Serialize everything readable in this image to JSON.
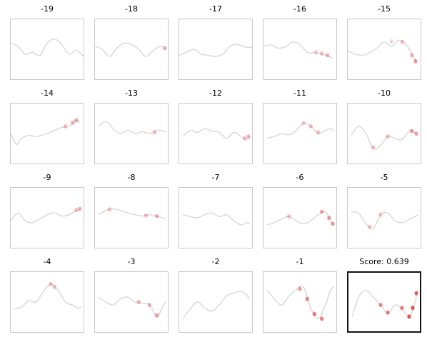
{
  "chart_data": {
    "type": "line",
    "layout": "grid-4x5",
    "panels": [
      {
        "title": "-19",
        "highlight": false,
        "curve": [
          [
            0.0,
            0.4
          ],
          [
            0.1,
            0.45
          ],
          [
            0.2,
            0.58
          ],
          [
            0.3,
            0.55
          ],
          [
            0.4,
            0.6
          ],
          [
            0.5,
            0.4
          ],
          [
            0.6,
            0.33
          ],
          [
            0.7,
            0.42
          ],
          [
            0.8,
            0.58
          ],
          [
            0.9,
            0.52
          ],
          [
            1.0,
            0.62
          ]
        ],
        "marks": []
      },
      {
        "title": "-18",
        "highlight": false,
        "curve": [
          [
            0.0,
            0.45
          ],
          [
            0.1,
            0.5
          ],
          [
            0.2,
            0.62
          ],
          [
            0.3,
            0.48
          ],
          [
            0.4,
            0.4
          ],
          [
            0.5,
            0.42
          ],
          [
            0.6,
            0.5
          ],
          [
            0.7,
            0.62
          ],
          [
            0.8,
            0.52
          ],
          [
            0.9,
            0.45
          ],
          [
            0.97,
            0.5
          ]
        ],
        "marks": [
          [
            0.96,
            0.48,
            0.35
          ]
        ]
      },
      {
        "title": "-17",
        "highlight": false,
        "curve": [
          [
            0.0,
            0.6
          ],
          [
            0.1,
            0.55
          ],
          [
            0.2,
            0.5
          ],
          [
            0.3,
            0.58
          ],
          [
            0.4,
            0.6
          ],
          [
            0.5,
            0.62
          ],
          [
            0.6,
            0.58
          ],
          [
            0.7,
            0.45
          ],
          [
            0.8,
            0.42
          ],
          [
            0.9,
            0.46
          ],
          [
            1.0,
            0.47
          ]
        ],
        "marks": []
      },
      {
        "title": "-16",
        "highlight": false,
        "curve": [
          [
            0.0,
            0.45
          ],
          [
            0.1,
            0.43
          ],
          [
            0.2,
            0.48
          ],
          [
            0.3,
            0.46
          ],
          [
            0.4,
            0.38
          ],
          [
            0.5,
            0.42
          ],
          [
            0.6,
            0.55
          ],
          [
            0.7,
            0.56
          ],
          [
            0.8,
            0.58
          ],
          [
            0.9,
            0.62
          ],
          [
            0.95,
            0.65
          ]
        ],
        "marks": [
          [
            0.72,
            0.55,
            0.25
          ],
          [
            0.8,
            0.57,
            0.3
          ],
          [
            0.88,
            0.6,
            0.35
          ]
        ]
      },
      {
        "title": "-15",
        "highlight": false,
        "curve": [
          [
            0.0,
            0.53
          ],
          [
            0.1,
            0.58
          ],
          [
            0.2,
            0.6
          ],
          [
            0.3,
            0.56
          ],
          [
            0.4,
            0.48
          ],
          [
            0.5,
            0.38
          ],
          [
            0.6,
            0.45
          ],
          [
            0.7,
            0.35
          ],
          [
            0.8,
            0.42
          ],
          [
            0.9,
            0.62
          ],
          [
            0.95,
            0.72
          ]
        ],
        "marks": [
          [
            0.6,
            0.37,
            0.2
          ],
          [
            0.75,
            0.38,
            0.3
          ],
          [
            0.88,
            0.6,
            0.35
          ],
          [
            0.93,
            0.7,
            0.45
          ]
        ]
      },
      {
        "title": "-14",
        "highlight": false,
        "curve": [
          [
            0.0,
            0.5
          ],
          [
            0.08,
            0.68
          ],
          [
            0.15,
            0.58
          ],
          [
            0.25,
            0.53
          ],
          [
            0.35,
            0.55
          ],
          [
            0.5,
            0.5
          ],
          [
            0.6,
            0.45
          ],
          [
            0.7,
            0.4
          ],
          [
            0.8,
            0.38
          ],
          [
            0.9,
            0.28
          ],
          [
            0.95,
            0.32
          ]
        ],
        "marks": [
          [
            0.75,
            0.38,
            0.3
          ],
          [
            0.85,
            0.32,
            0.35
          ],
          [
            0.9,
            0.28,
            0.4
          ]
        ]
      },
      {
        "title": "-13",
        "highlight": false,
        "curve": [
          [
            0.05,
            0.38
          ],
          [
            0.15,
            0.3
          ],
          [
            0.25,
            0.42
          ],
          [
            0.35,
            0.5
          ],
          [
            0.45,
            0.45
          ],
          [
            0.55,
            0.5
          ],
          [
            0.65,
            0.47
          ],
          [
            0.75,
            0.5
          ],
          [
            0.85,
            0.45
          ],
          [
            0.92,
            0.45
          ],
          [
            0.97,
            0.47
          ]
        ],
        "marks": [
          [
            0.82,
            0.48,
            0.3
          ]
        ]
      },
      {
        "title": "-12",
        "highlight": false,
        "curve": [
          [
            0.05,
            0.55
          ],
          [
            0.15,
            0.45
          ],
          [
            0.25,
            0.48
          ],
          [
            0.35,
            0.42
          ],
          [
            0.45,
            0.46
          ],
          [
            0.55,
            0.48
          ],
          [
            0.65,
            0.58
          ],
          [
            0.75,
            0.48
          ],
          [
            0.85,
            0.55
          ],
          [
            0.92,
            0.6
          ],
          [
            0.97,
            0.55
          ]
        ],
        "marks": [
          [
            0.9,
            0.58,
            0.3
          ],
          [
            0.95,
            0.55,
            0.35
          ]
        ]
      },
      {
        "title": "-11",
        "highlight": false,
        "curve": [
          [
            0.05,
            0.58
          ],
          [
            0.15,
            0.55
          ],
          [
            0.25,
            0.5
          ],
          [
            0.35,
            0.52
          ],
          [
            0.45,
            0.45
          ],
          [
            0.55,
            0.32
          ],
          [
            0.65,
            0.38
          ],
          [
            0.75,
            0.5
          ],
          [
            0.85,
            0.45
          ],
          [
            0.92,
            0.42
          ],
          [
            0.97,
            0.45
          ]
        ],
        "marks": [
          [
            0.55,
            0.33,
            0.25
          ],
          [
            0.65,
            0.38,
            0.3
          ],
          [
            0.75,
            0.48,
            0.3
          ]
        ]
      },
      {
        "title": "-10",
        "highlight": false,
        "curve": [
          [
            0.05,
            0.52
          ],
          [
            0.15,
            0.38
          ],
          [
            0.25,
            0.5
          ],
          [
            0.35,
            0.75
          ],
          [
            0.45,
            0.7
          ],
          [
            0.55,
            0.55
          ],
          [
            0.65,
            0.58
          ],
          [
            0.75,
            0.6
          ],
          [
            0.85,
            0.45
          ],
          [
            0.92,
            0.48
          ],
          [
            0.97,
            0.55
          ]
        ],
        "marks": [
          [
            0.35,
            0.73,
            0.3
          ],
          [
            0.55,
            0.55,
            0.3
          ],
          [
            0.88,
            0.46,
            0.45
          ],
          [
            0.94,
            0.5,
            0.4
          ]
        ]
      },
      {
        "title": "-9",
        "highlight": false,
        "curve": [
          [
            0.0,
            0.55
          ],
          [
            0.1,
            0.42
          ],
          [
            0.2,
            0.55
          ],
          [
            0.3,
            0.58
          ],
          [
            0.4,
            0.52
          ],
          [
            0.5,
            0.45
          ],
          [
            0.6,
            0.42
          ],
          [
            0.7,
            0.47
          ],
          [
            0.8,
            0.45
          ],
          [
            0.9,
            0.38
          ],
          [
            0.97,
            0.35
          ]
        ],
        "marks": [
          [
            0.9,
            0.37,
            0.3
          ],
          [
            0.95,
            0.35,
            0.35
          ]
        ]
      },
      {
        "title": "-8",
        "highlight": false,
        "curve": [
          [
            0.05,
            0.45
          ],
          [
            0.15,
            0.38
          ],
          [
            0.25,
            0.35
          ],
          [
            0.35,
            0.38
          ],
          [
            0.45,
            0.42
          ],
          [
            0.55,
            0.45
          ],
          [
            0.65,
            0.47
          ],
          [
            0.75,
            0.45
          ],
          [
            0.85,
            0.48
          ],
          [
            0.92,
            0.5
          ],
          [
            0.97,
            0.52
          ]
        ],
        "marks": [
          [
            0.2,
            0.36,
            0.3
          ],
          [
            0.7,
            0.46,
            0.3
          ],
          [
            0.85,
            0.47,
            0.35
          ]
        ]
      },
      {
        "title": "-7",
        "highlight": false,
        "curve": [
          [
            0.05,
            0.45
          ],
          [
            0.15,
            0.48
          ],
          [
            0.25,
            0.5
          ],
          [
            0.35,
            0.45
          ],
          [
            0.45,
            0.42
          ],
          [
            0.55,
            0.48
          ],
          [
            0.65,
            0.45
          ],
          [
            0.75,
            0.55
          ],
          [
            0.85,
            0.62
          ],
          [
            0.92,
            0.58
          ],
          [
            0.97,
            0.6
          ]
        ],
        "marks": []
      },
      {
        "title": "-6",
        "highlight": false,
        "curve": [
          [
            0.05,
            0.62
          ],
          [
            0.15,
            0.58
          ],
          [
            0.25,
            0.52
          ],
          [
            0.35,
            0.48
          ],
          [
            0.45,
            0.55
          ],
          [
            0.55,
            0.6
          ],
          [
            0.65,
            0.55
          ],
          [
            0.75,
            0.45
          ],
          [
            0.85,
            0.4
          ],
          [
            0.92,
            0.55
          ],
          [
            0.97,
            0.62
          ]
        ],
        "marks": [
          [
            0.35,
            0.48,
            0.3
          ],
          [
            0.8,
            0.4,
            0.4
          ],
          [
            0.9,
            0.5,
            0.45
          ],
          [
            0.95,
            0.6,
            0.45
          ]
        ]
      },
      {
        "title": "-5",
        "highlight": false,
        "curve": [
          [
            0.05,
            0.4
          ],
          [
            0.15,
            0.42
          ],
          [
            0.25,
            0.6
          ],
          [
            0.35,
            0.68
          ],
          [
            0.45,
            0.45
          ],
          [
            0.55,
            0.42
          ],
          [
            0.65,
            0.55
          ],
          [
            0.75,
            0.58
          ],
          [
            0.85,
            0.52
          ],
          [
            0.92,
            0.48
          ],
          [
            0.97,
            0.45
          ]
        ],
        "marks": [
          [
            0.3,
            0.65,
            0.3
          ],
          [
            0.45,
            0.45,
            0.3
          ]
        ]
      },
      {
        "title": "-4",
        "highlight": false,
        "curve": [
          [
            0.05,
            0.62
          ],
          [
            0.15,
            0.58
          ],
          [
            0.25,
            0.48
          ],
          [
            0.35,
            0.5
          ],
          [
            0.45,
            0.32
          ],
          [
            0.55,
            0.2
          ],
          [
            0.65,
            0.3
          ],
          [
            0.75,
            0.5
          ],
          [
            0.85,
            0.55
          ],
          [
            0.92,
            0.6
          ],
          [
            0.97,
            0.58
          ]
        ],
        "marks": [
          [
            0.55,
            0.2,
            0.3
          ],
          [
            0.6,
            0.25,
            0.3
          ]
        ]
      },
      {
        "title": "-3",
        "highlight": false,
        "curve": [
          [
            0.05,
            0.42
          ],
          [
            0.15,
            0.5
          ],
          [
            0.25,
            0.55
          ],
          [
            0.35,
            0.45
          ],
          [
            0.45,
            0.42
          ],
          [
            0.55,
            0.5
          ],
          [
            0.65,
            0.52
          ],
          [
            0.75,
            0.55
          ],
          [
            0.85,
            0.75
          ],
          [
            0.92,
            0.6
          ],
          [
            0.97,
            0.5
          ]
        ],
        "marks": [
          [
            0.6,
            0.5,
            0.35
          ],
          [
            0.75,
            0.55,
            0.35
          ],
          [
            0.85,
            0.72,
            0.4
          ]
        ]
      },
      {
        "title": "-2",
        "highlight": false,
        "curve": [
          [
            0.05,
            0.78
          ],
          [
            0.15,
            0.62
          ],
          [
            0.25,
            0.5
          ],
          [
            0.35,
            0.6
          ],
          [
            0.45,
            0.65
          ],
          [
            0.55,
            0.55
          ],
          [
            0.65,
            0.4
          ],
          [
            0.75,
            0.35
          ],
          [
            0.85,
            0.32
          ],
          [
            0.92,
            0.38
          ],
          [
            0.97,
            0.45
          ]
        ],
        "marks": []
      },
      {
        "title": "-1",
        "highlight": false,
        "curve": [
          [
            0.05,
            0.3
          ],
          [
            0.15,
            0.45
          ],
          [
            0.25,
            0.55
          ],
          [
            0.35,
            0.4
          ],
          [
            0.45,
            0.3
          ],
          [
            0.55,
            0.25
          ],
          [
            0.65,
            0.6
          ],
          [
            0.75,
            0.78
          ],
          [
            0.85,
            0.55
          ],
          [
            0.92,
            0.3
          ],
          [
            0.97,
            0.25
          ]
        ],
        "marks": [
          [
            0.5,
            0.28,
            0.45
          ],
          [
            0.6,
            0.45,
            0.55
          ],
          [
            0.7,
            0.7,
            0.6
          ],
          [
            0.8,
            0.78,
            0.6
          ]
        ]
      },
      {
        "title": "Score: 0.639",
        "highlight": true,
        "curve": [
          [
            0.05,
            0.75
          ],
          [
            0.15,
            0.4
          ],
          [
            0.25,
            0.3
          ],
          [
            0.35,
            0.42
          ],
          [
            0.45,
            0.55
          ],
          [
            0.55,
            0.7
          ],
          [
            0.65,
            0.55
          ],
          [
            0.75,
            0.62
          ],
          [
            0.85,
            0.75
          ],
          [
            0.92,
            0.55
          ],
          [
            0.97,
            0.3
          ]
        ],
        "marks": [
          [
            0.45,
            0.55,
            0.55
          ],
          [
            0.55,
            0.68,
            0.6
          ],
          [
            0.75,
            0.6,
            0.6
          ],
          [
            0.85,
            0.75,
            0.8
          ],
          [
            0.9,
            0.6,
            0.8
          ],
          [
            0.95,
            0.35,
            0.7
          ]
        ]
      }
    ],
    "curve_color": "#d8d8d8",
    "mark_color": "#e0282b",
    "grid": false
  }
}
